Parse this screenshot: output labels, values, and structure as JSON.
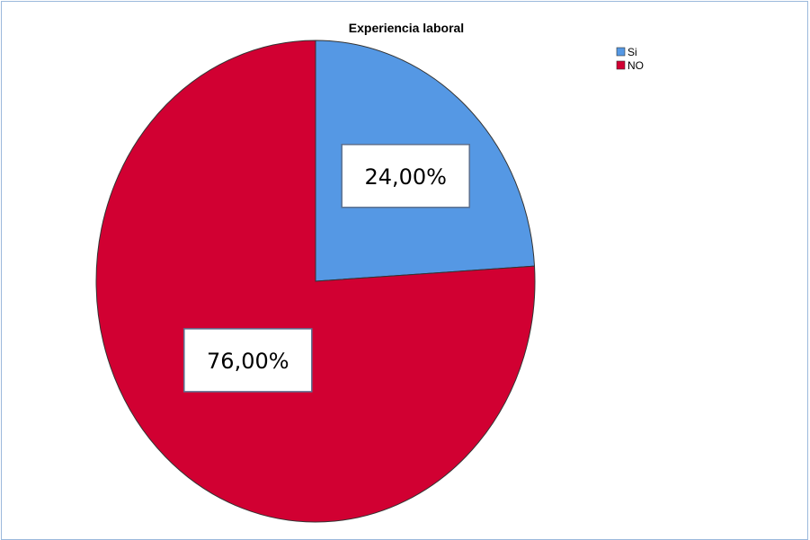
{
  "chart_data": {
    "type": "pie",
    "title": "Experiencia laboral",
    "categories": [
      "Si",
      "NO"
    ],
    "values": [
      24.0,
      76.0
    ],
    "data_labels": [
      "24,00%",
      "76,00%"
    ],
    "colors": [
      "#5598e4",
      "#d10032"
    ],
    "legend_position": "top-right"
  }
}
